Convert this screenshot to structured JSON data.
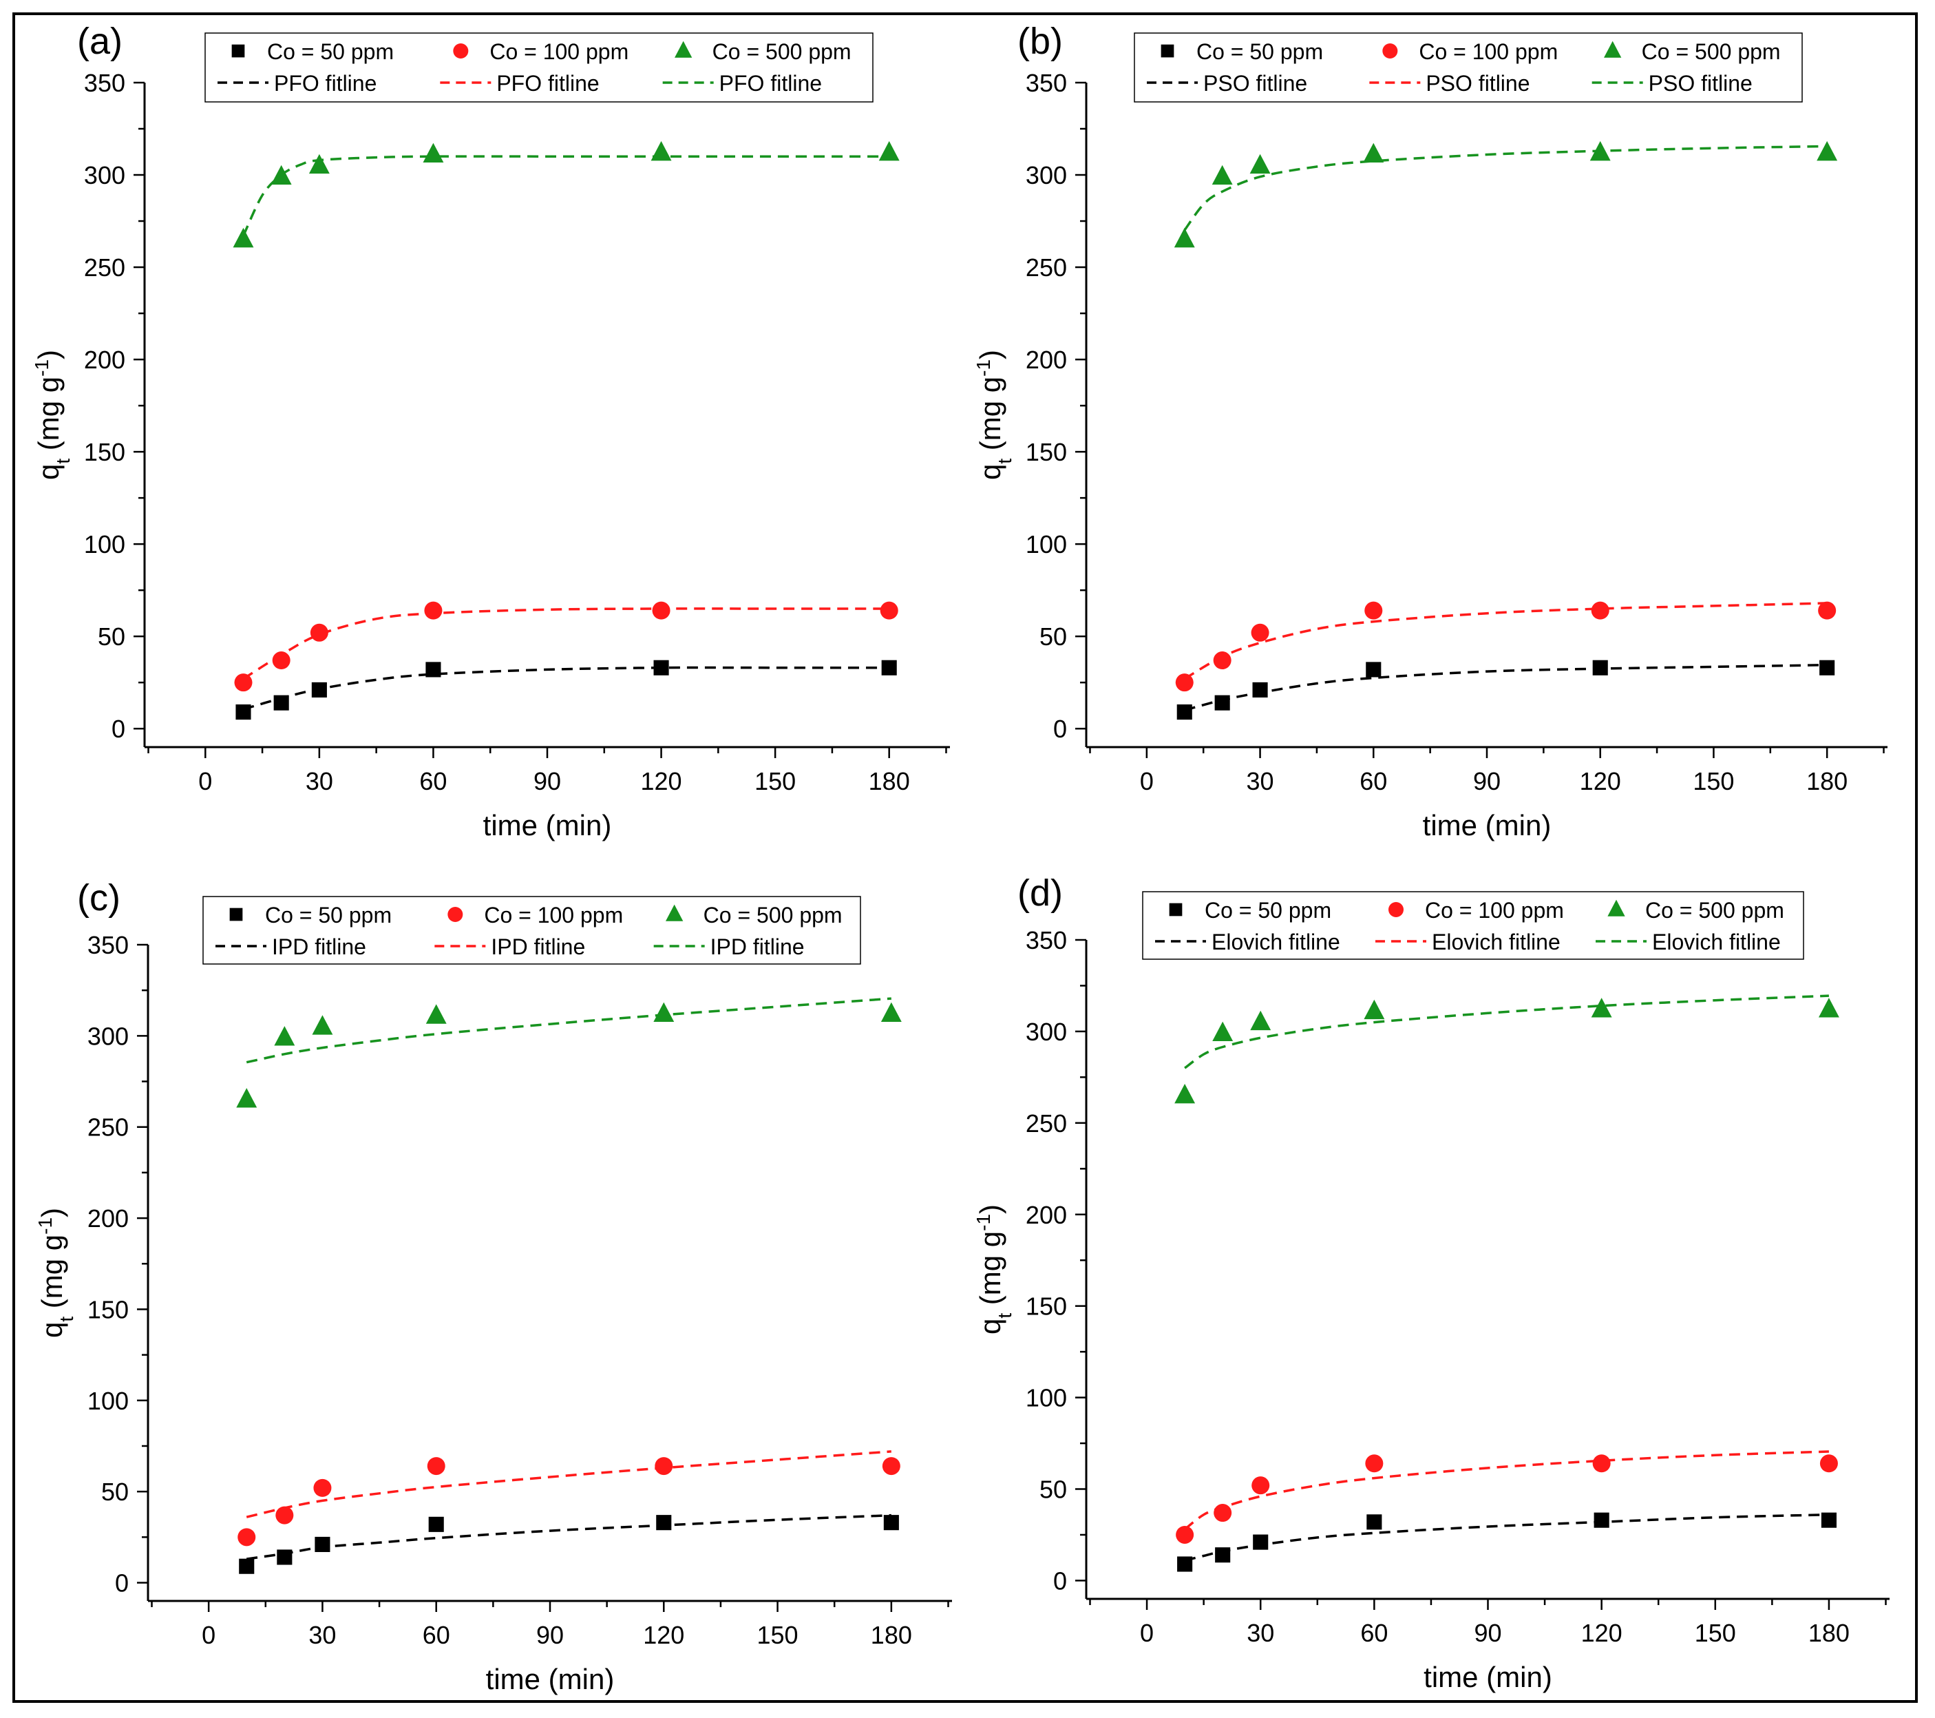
{
  "figure": {
    "border_color": "#000000"
  },
  "colors": {
    "c50": "#000000",
    "c100": "#ff1a1a",
    "c500": "#17931f"
  },
  "chart_data": [
    {
      "type": "scatter",
      "panel": "(a)",
      "xlabel": "time (min)",
      "ylabel_main": "q",
      "ylabel_sub": "t",
      "ylabel_unit_open": " (mg g",
      "ylabel_sup": "-1",
      "ylabel_close": ")",
      "xlim": [
        -16,
        196
      ],
      "ylim": [
        -10,
        350
      ],
      "xticks": [
        0,
        30,
        60,
        90,
        120,
        150,
        180
      ],
      "yticks": [
        0,
        50,
        100,
        150,
        200,
        250,
        300,
        350
      ],
      "legend_position": "top",
      "series": [
        {
          "name": "Co = 50 ppm",
          "marker": "square",
          "color": "#000000",
          "x": [
            10,
            20,
            30,
            60,
            120,
            180
          ],
          "y": [
            9,
            14,
            21,
            32,
            33,
            33
          ]
        },
        {
          "name": "Co = 100 ppm",
          "marker": "circle",
          "color": "#ff1a1a",
          "x": [
            10,
            20,
            30,
            60,
            120,
            180
          ],
          "y": [
            25,
            37,
            52,
            64,
            64,
            64
          ]
        },
        {
          "name": "Co = 500 ppm",
          "marker": "triangle",
          "color": "#17931f",
          "x": [
            10,
            20,
            30,
            60,
            120,
            180
          ],
          "y": [
            265,
            299,
            305,
            311,
            312,
            312
          ]
        }
      ],
      "fits": [
        {
          "name": "PFO fitline",
          "color": "#000000",
          "x": [
            10,
            20,
            30,
            45,
            60,
            90,
            120,
            150,
            180
          ],
          "y": [
            10.5,
            16.5,
            21.5,
            26.5,
            29.5,
            32,
            33,
            33,
            33
          ]
        },
        {
          "name": "PFO fitline",
          "color": "#ff1a1a",
          "x": [
            10,
            20,
            30,
            45,
            60,
            90,
            120,
            150,
            180
          ],
          "y": [
            27,
            40,
            51,
            59.5,
            62.5,
            64.5,
            65,
            65,
            65
          ]
        },
        {
          "name": "PFO fitline",
          "color": "#17931f",
          "x": [
            10,
            15,
            20,
            25,
            30,
            45,
            60,
            90,
            120,
            150,
            180
          ],
          "y": [
            267,
            289,
            300,
            305.5,
            308,
            309.5,
            310,
            310,
            310,
            310,
            310
          ]
        }
      ]
    },
    {
      "type": "scatter",
      "panel": "(b)",
      "xlabel": "time (min)",
      "ylabel_main": "q",
      "ylabel_sub": "t",
      "ylabel_unit_open": " (mg g",
      "ylabel_sup": "-1",
      "ylabel_close": ")",
      "xlim": [
        -16,
        196
      ],
      "ylim": [
        -10,
        350
      ],
      "xticks": [
        0,
        30,
        60,
        90,
        120,
        150,
        180
      ],
      "yticks": [
        0,
        50,
        100,
        150,
        200,
        250,
        300,
        350
      ],
      "legend_position": "top",
      "series": [
        {
          "name": "Co = 50 ppm",
          "marker": "square",
          "color": "#000000",
          "x": [
            10,
            20,
            30,
            60,
            120,
            180
          ],
          "y": [
            9,
            14,
            21,
            32,
            33,
            33
          ]
        },
        {
          "name": "Co = 100 ppm",
          "marker": "circle",
          "color": "#ff1a1a",
          "x": [
            10,
            20,
            30,
            60,
            120,
            180
          ],
          "y": [
            25,
            37,
            52,
            64,
            64,
            64
          ]
        },
        {
          "name": "Co = 500 ppm",
          "marker": "triangle",
          "color": "#17931f",
          "x": [
            10,
            20,
            30,
            60,
            120,
            180
          ],
          "y": [
            265,
            299,
            305,
            311,
            312,
            312
          ]
        }
      ],
      "fits": [
        {
          "name": "PSO fitline",
          "color": "#000000",
          "x": [
            10,
            20,
            30,
            45,
            60,
            90,
            120,
            150,
            180
          ],
          "y": [
            10,
            15.5,
            19.5,
            24.5,
            27.5,
            31,
            32.5,
            33.5,
            34.5
          ]
        },
        {
          "name": "PSO fitline",
          "color": "#ff1a1a",
          "x": [
            10,
            20,
            30,
            45,
            60,
            90,
            120,
            150,
            180
          ],
          "y": [
            27,
            39,
            46.5,
            54,
            58,
            62.5,
            65,
            66.5,
            68
          ]
        },
        {
          "name": "PSO fitline",
          "color": "#17931f",
          "x": [
            10,
            15,
            20,
            30,
            45,
            60,
            90,
            120,
            150,
            180
          ],
          "y": [
            270,
            284,
            291,
            299,
            304.5,
            307.5,
            311,
            313,
            314.5,
            315.5
          ]
        }
      ]
    },
    {
      "type": "scatter",
      "panel": "(c)",
      "xlabel": "time (min)",
      "ylabel_main": "q",
      "ylabel_sub": "t",
      "ylabel_unit_open": " (mg g",
      "ylabel_sup": "-1",
      "ylabel_close": ")",
      "xlim": [
        -16,
        196
      ],
      "ylim": [
        -10,
        350
      ],
      "xticks": [
        0,
        30,
        60,
        90,
        120,
        150,
        180
      ],
      "yticks": [
        0,
        50,
        100,
        150,
        200,
        250,
        300,
        350
      ],
      "legend_position": "top",
      "series": [
        {
          "name": "Co = 50 ppm",
          "marker": "square",
          "color": "#000000",
          "x": [
            10,
            20,
            30,
            60,
            120,
            180
          ],
          "y": [
            9,
            14,
            21,
            32,
            33,
            33
          ]
        },
        {
          "name": "Co = 100 ppm",
          "marker": "circle",
          "color": "#ff1a1a",
          "x": [
            10,
            20,
            30,
            60,
            120,
            180
          ],
          "y": [
            25,
            37,
            52,
            64,
            64,
            64
          ]
        },
        {
          "name": "Co = 500 ppm",
          "marker": "triangle",
          "color": "#17931f",
          "x": [
            10,
            20,
            30,
            60,
            120,
            180
          ],
          "y": [
            265,
            299,
            305,
            311,
            312,
            312
          ]
        }
      ],
      "fits": [
        {
          "name": "IPD fitline",
          "color": "#000000",
          "x": [
            10,
            20,
            30,
            45,
            60,
            90,
            120,
            150,
            180
          ],
          "y": [
            13,
            16,
            19.5,
            22,
            24.5,
            28.5,
            31.5,
            34.5,
            37
          ]
        },
        {
          "name": "IPD fitline",
          "color": "#ff1a1a",
          "x": [
            10,
            20,
            30,
            45,
            60,
            90,
            120,
            150,
            180
          ],
          "y": [
            36,
            41,
            45,
            49,
            52.5,
            58,
            63,
            67.5,
            72
          ]
        },
        {
          "name": "IPD fitline",
          "color": "#17931f",
          "x": [
            10,
            20,
            30,
            45,
            60,
            90,
            120,
            150,
            180
          ],
          "y": [
            285.5,
            290,
            293.5,
            297.5,
            301,
            306.5,
            311.5,
            316,
            320.5
          ]
        }
      ]
    },
    {
      "type": "scatter",
      "panel": "(d)",
      "xlabel": "time (min)",
      "ylabel_main": "q",
      "ylabel_sub": "t",
      "ylabel_unit_open": " (mg g",
      "ylabel_sup": "-1",
      "ylabel_close": ")",
      "xlim": [
        -16,
        196
      ],
      "ylim": [
        -10,
        350
      ],
      "xticks": [
        0,
        30,
        60,
        90,
        120,
        150,
        180
      ],
      "yticks": [
        0,
        50,
        100,
        150,
        200,
        250,
        300,
        350
      ],
      "legend_position": "top",
      "series": [
        {
          "name": "Co = 50 ppm",
          "marker": "square",
          "color": "#000000",
          "x": [
            10,
            20,
            30,
            60,
            120,
            180
          ],
          "y": [
            9,
            14,
            21,
            32,
            33,
            33
          ]
        },
        {
          "name": "Co = 100 ppm",
          "marker": "circle",
          "color": "#ff1a1a",
          "x": [
            10,
            20,
            30,
            60,
            120,
            180
          ],
          "y": [
            25,
            37,
            52,
            64,
            64,
            64
          ]
        },
        {
          "name": "Co = 500 ppm",
          "marker": "triangle",
          "color": "#17931f",
          "x": [
            10,
            20,
            30,
            60,
            120,
            180
          ],
          "y": [
            265,
            299,
            305,
            311,
            312,
            312
          ]
        }
      ],
      "fits": [
        {
          "name": "Elovich fitline",
          "color": "#000000",
          "x": [
            10,
            15,
            20,
            30,
            45,
            60,
            90,
            120,
            150,
            180
          ],
          "y": [
            11,
            13.5,
            16,
            19.5,
            23.5,
            26,
            29.5,
            32,
            34.5,
            36
          ]
        },
        {
          "name": "Elovich fitline",
          "color": "#ff1a1a",
          "x": [
            10,
            15,
            20,
            30,
            45,
            60,
            90,
            120,
            150,
            180
          ],
          "y": [
            28,
            36,
            40,
            46,
            52,
            56,
            61.5,
            65.5,
            68.5,
            70.5
          ]
        },
        {
          "name": "Elovich fitline",
          "color": "#17931f",
          "x": [
            10,
            15,
            20,
            30,
            45,
            60,
            90,
            120,
            150,
            180
          ],
          "y": [
            280,
            287.5,
            291.5,
            296.5,
            301.5,
            305,
            310,
            314,
            317,
            319.5
          ]
        }
      ]
    }
  ]
}
